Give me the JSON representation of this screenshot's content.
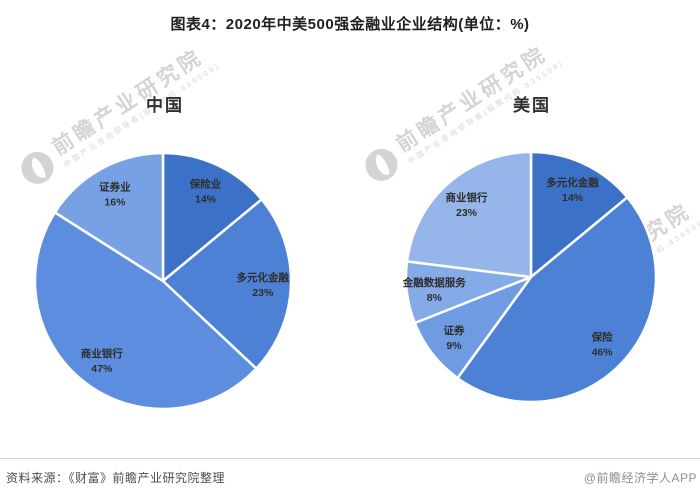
{
  "title": "图表4：2020年中美500强金融业企业结构(单位：%)",
  "source_note": "资料来源：《财富》前瞻产业研究院整理",
  "credit": "@前瞻经济学人APP",
  "watermark": {
    "brand": "前瞻产业研究院",
    "subtext": "中国产业咨询领导者(股票代码:839599)",
    "logo": "qianzhan-bird-logo",
    "color": "#d9d9d9"
  },
  "chart_data": [
    {
      "type": "pie",
      "title": "中国",
      "unit": "%",
      "start_angle_deg": 0,
      "direction": "clockwise",
      "label_position": "inside",
      "slices": [
        {
          "label": "保险业",
          "value": 14,
          "color": "#3b71c7"
        },
        {
          "label": "多元化金融",
          "value": 23,
          "color": "#4c81d6"
        },
        {
          "label": "商业银行",
          "value": 47,
          "color": "#5d8dde"
        },
        {
          "label": "证券业",
          "value": 16,
          "color": "#78a1e5"
        }
      ]
    },
    {
      "type": "pie",
      "title": "美国",
      "unit": "%",
      "start_angle_deg": 0,
      "direction": "clockwise",
      "label_position": "inside",
      "slices": [
        {
          "label": "多元化金融",
          "value": 14,
          "color": "#3b71c7"
        },
        {
          "label": "保险",
          "value": 46,
          "color": "#4c81d6"
        },
        {
          "label": "证券",
          "value": 9,
          "color": "#6f9be3"
        },
        {
          "label": "金融数据服务",
          "value": 8,
          "color": "#85aae8"
        },
        {
          "label": "商业银行",
          "value": 23,
          "color": "#95b5eb"
        }
      ]
    }
  ]
}
